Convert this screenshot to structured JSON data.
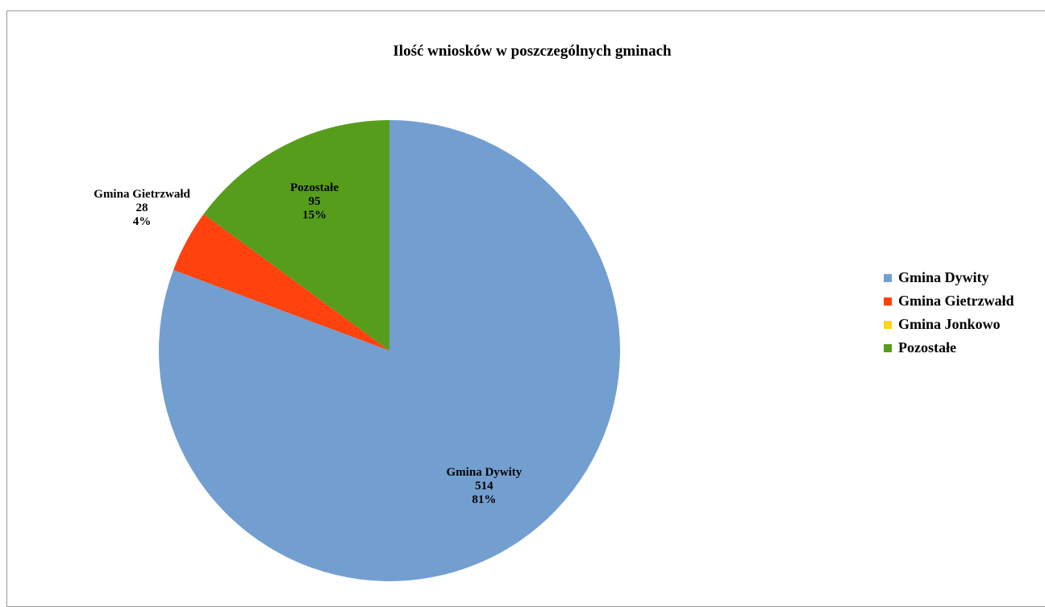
{
  "chart_data": {
    "type": "pie",
    "title": "Ilość wniosków w poszczególnych gminach",
    "slices": [
      {
        "name": "Gmina Dywity",
        "value": 514,
        "percent": "81%",
        "color": "#729fcf",
        "show_label": true
      },
      {
        "name": "Gmina Gietrzwałd",
        "value": 28,
        "percent": "4%",
        "color": "#ff420e",
        "show_label": true
      },
      {
        "name": "Gmina Jonkowo",
        "value": 0,
        "percent": "0%",
        "color": "#ffd320",
        "show_label": false
      },
      {
        "name": "Pozostałe",
        "value": 95,
        "percent": "15%",
        "color": "#579d1c",
        "show_label": true
      }
    ],
    "start_angle_deg": 0,
    "direction": "clockwise",
    "legend_position": "right"
  }
}
